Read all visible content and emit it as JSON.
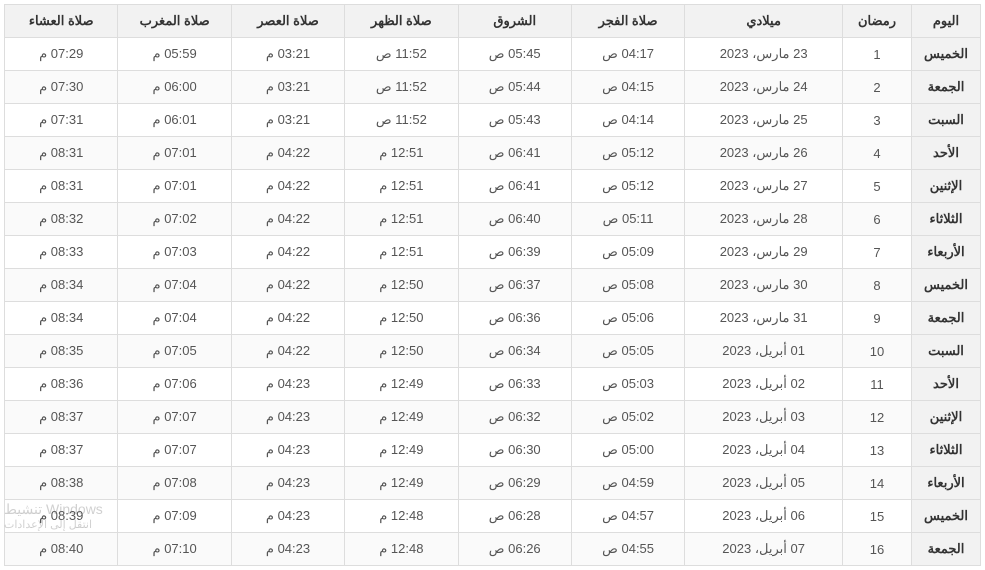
{
  "table": {
    "columns": [
      {
        "key": "day",
        "label": "اليوم",
        "class": "col-day"
      },
      {
        "key": "ramadan",
        "label": "رمضان",
        "class": "col-ram"
      },
      {
        "key": "date",
        "label": "ميلادي",
        "class": "col-date"
      },
      {
        "key": "fajr",
        "label": "صلاة الفجر",
        "class": "col-time"
      },
      {
        "key": "sunrise",
        "label": "الشروق",
        "class": "col-time"
      },
      {
        "key": "dhuhr",
        "label": "صلاة الظهر",
        "class": "col-time"
      },
      {
        "key": "asr",
        "label": "صلاة العصر",
        "class": "col-time"
      },
      {
        "key": "maghrib",
        "label": "صلاة المغرب",
        "class": "col-time"
      },
      {
        "key": "isha",
        "label": "صلاة العشاء",
        "class": "col-time"
      }
    ],
    "rows": [
      {
        "day": "الخميس",
        "ramadan": "1",
        "date": "23 مارس، 2023",
        "fajr": "04:17 ص",
        "sunrise": "05:45 ص",
        "dhuhr": "11:52 ص",
        "asr": "03:21 م",
        "maghrib": "05:59 م",
        "isha": "07:29 م"
      },
      {
        "day": "الجمعة",
        "ramadan": "2",
        "date": "24 مارس، 2023",
        "fajr": "04:15 ص",
        "sunrise": "05:44 ص",
        "dhuhr": "11:52 ص",
        "asr": "03:21 م",
        "maghrib": "06:00 م",
        "isha": "07:30 م"
      },
      {
        "day": "السبت",
        "ramadan": "3",
        "date": "25 مارس، 2023",
        "fajr": "04:14 ص",
        "sunrise": "05:43 ص",
        "dhuhr": "11:52 ص",
        "asr": "03:21 م",
        "maghrib": "06:01 م",
        "isha": "07:31 م"
      },
      {
        "day": "الأحد",
        "ramadan": "4",
        "date": "26 مارس، 2023",
        "fajr": "05:12 ص",
        "sunrise": "06:41 ص",
        "dhuhr": "12:51 م",
        "asr": "04:22 م",
        "maghrib": "07:01 م",
        "isha": "08:31 م"
      },
      {
        "day": "الإثنين",
        "ramadan": "5",
        "date": "27 مارس، 2023",
        "fajr": "05:12 ص",
        "sunrise": "06:41 ص",
        "dhuhr": "12:51 م",
        "asr": "04:22 م",
        "maghrib": "07:01 م",
        "isha": "08:31 م"
      },
      {
        "day": "الثلاثاء",
        "ramadan": "6",
        "date": "28 مارس، 2023",
        "fajr": "05:11 ص",
        "sunrise": "06:40 ص",
        "dhuhr": "12:51 م",
        "asr": "04:22 م",
        "maghrib": "07:02 م",
        "isha": "08:32 م"
      },
      {
        "day": "الأربعاء",
        "ramadan": "7",
        "date": "29 مارس، 2023",
        "fajr": "05:09 ص",
        "sunrise": "06:39 ص",
        "dhuhr": "12:51 م",
        "asr": "04:22 م",
        "maghrib": "07:03 م",
        "isha": "08:33 م"
      },
      {
        "day": "الخميس",
        "ramadan": "8",
        "date": "30 مارس، 2023",
        "fajr": "05:08 ص",
        "sunrise": "06:37 ص",
        "dhuhr": "12:50 م",
        "asr": "04:22 م",
        "maghrib": "07:04 م",
        "isha": "08:34 م"
      },
      {
        "day": "الجمعة",
        "ramadan": "9",
        "date": "31 مارس، 2023",
        "fajr": "05:06 ص",
        "sunrise": "06:36 ص",
        "dhuhr": "12:50 م",
        "asr": "04:22 م",
        "maghrib": "07:04 م",
        "isha": "08:34 م"
      },
      {
        "day": "السبت",
        "ramadan": "10",
        "date": "01 أبريل، 2023",
        "fajr": "05:05 ص",
        "sunrise": "06:34 ص",
        "dhuhr": "12:50 م",
        "asr": "04:22 م",
        "maghrib": "07:05 م",
        "isha": "08:35 م"
      },
      {
        "day": "الأحد",
        "ramadan": "11",
        "date": "02 أبريل، 2023",
        "fajr": "05:03 ص",
        "sunrise": "06:33 ص",
        "dhuhr": "12:49 م",
        "asr": "04:23 م",
        "maghrib": "07:06 م",
        "isha": "08:36 م"
      },
      {
        "day": "الإثنين",
        "ramadan": "12",
        "date": "03 أبريل، 2023",
        "fajr": "05:02 ص",
        "sunrise": "06:32 ص",
        "dhuhr": "12:49 م",
        "asr": "04:23 م",
        "maghrib": "07:07 م",
        "isha": "08:37 م"
      },
      {
        "day": "الثلاثاء",
        "ramadan": "13",
        "date": "04 أبريل، 2023",
        "fajr": "05:00 ص",
        "sunrise": "06:30 ص",
        "dhuhr": "12:49 م",
        "asr": "04:23 م",
        "maghrib": "07:07 م",
        "isha": "08:37 م"
      },
      {
        "day": "الأربعاء",
        "ramadan": "14",
        "date": "05 أبريل، 2023",
        "fajr": "04:59 ص",
        "sunrise": "06:29 ص",
        "dhuhr": "12:49 م",
        "asr": "04:23 م",
        "maghrib": "07:08 م",
        "isha": "08:38 م"
      },
      {
        "day": "الخميس",
        "ramadan": "15",
        "date": "06 أبريل، 2023",
        "fajr": "04:57 ص",
        "sunrise": "06:28 ص",
        "dhuhr": "12:48 م",
        "asr": "04:23 م",
        "maghrib": "07:09 م",
        "isha": "08:39 م"
      },
      {
        "day": "الجمعة",
        "ramadan": "16",
        "date": "07 أبريل، 2023",
        "fajr": "04:55 ص",
        "sunrise": "06:26 ص",
        "dhuhr": "12:48 م",
        "asr": "04:23 م",
        "maghrib": "07:10 م",
        "isha": "08:40 م"
      }
    ],
    "header_bg": "#f2f2f2",
    "border_color": "#dddddd",
    "row_alt_bg": "#fafafa",
    "text_color": "#333333"
  },
  "watermark": {
    "line1": "تنشيط Windows",
    "line2": "انتقل إلى الإعدادات"
  }
}
